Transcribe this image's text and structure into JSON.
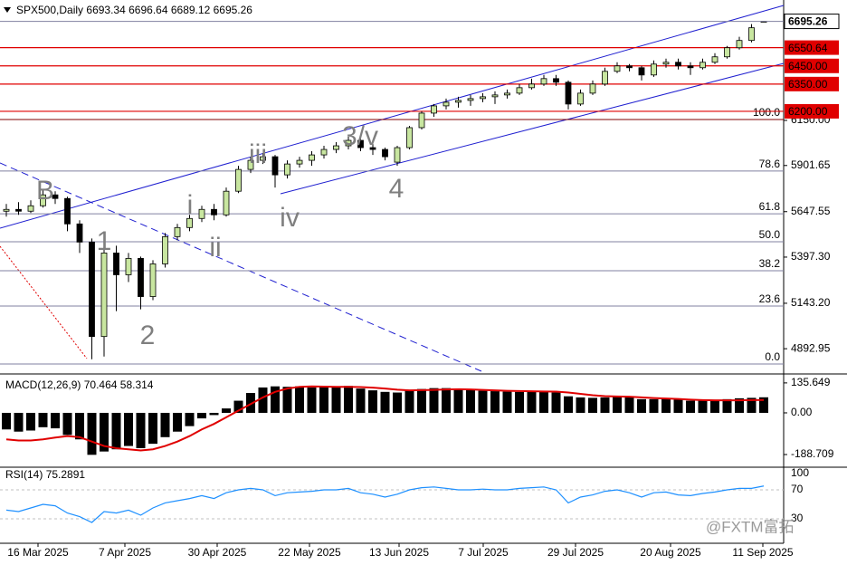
{
  "chart_data": [
    {
      "type": "candlestick",
      "title": "SPX500,Daily",
      "candles": [
        [
          5650,
          5690,
          5620,
          5660
        ],
        [
          5660,
          5700,
          5630,
          5650
        ],
        [
          5650,
          5710,
          5640,
          5680
        ],
        [
          5680,
          5770,
          5670,
          5740
        ],
        [
          5740,
          5760,
          5690,
          5720
        ],
        [
          5720,
          5730,
          5540,
          5580
        ],
        [
          5580,
          5600,
          5420,
          5480
        ],
        [
          5480,
          5500,
          4835,
          4960
        ],
        [
          4960,
          5480,
          4850,
          5420
        ],
        [
          5420,
          5460,
          5100,
          5300
        ],
        [
          5300,
          5420,
          5260,
          5390
        ],
        [
          5390,
          5400,
          5110,
          5180
        ],
        [
          5180,
          5380,
          5160,
          5360
        ],
        [
          5360,
          5530,
          5340,
          5510
        ],
        [
          5510,
          5580,
          5490,
          5560
        ],
        [
          5560,
          5630,
          5540,
          5610
        ],
        [
          5610,
          5680,
          5590,
          5660
        ],
        [
          5660,
          5690,
          5600,
          5630
        ],
        [
          5630,
          5780,
          5620,
          5760
        ],
        [
          5760,
          5900,
          5750,
          5880
        ],
        [
          5880,
          5950,
          5860,
          5930
        ],
        [
          5930,
          5970,
          5910,
          5950
        ],
        [
          5950,
          5960,
          5780,
          5850
        ],
        [
          5850,
          5930,
          5830,
          5910
        ],
        [
          5910,
          5950,
          5890,
          5930
        ],
        [
          5930,
          5980,
          5900,
          5960
        ],
        [
          5960,
          6010,
          5940,
          5990
        ],
        [
          5990,
          6030,
          5970,
          6010
        ],
        [
          6010,
          6060,
          5990,
          6040
        ],
        [
          6040,
          6050,
          5980,
          6000
        ],
        [
          6000,
          6020,
          5960,
          5990
        ],
        [
          5990,
          6000,
          5930,
          5950
        ],
        [
          5920,
          6010,
          5900,
          6000
        ],
        [
          6000,
          6120,
          5990,
          6110
        ],
        [
          6110,
          6200,
          6100,
          6190
        ],
        [
          6190,
          6240,
          6170,
          6230
        ],
        [
          6230,
          6270,
          6210,
          6250
        ],
        [
          6250,
          6280,
          6220,
          6260
        ],
        [
          6260,
          6290,
          6230,
          6270
        ],
        [
          6270,
          6300,
          6250,
          6280
        ],
        [
          6280,
          6310,
          6240,
          6290
        ],
        [
          6290,
          6320,
          6270,
          6300
        ],
        [
          6300,
          6350,
          6290,
          6330
        ],
        [
          6330,
          6380,
          6320,
          6350
        ],
        [
          6350,
          6400,
          6340,
          6380
        ],
        [
          6380,
          6400,
          6340,
          6360
        ],
        [
          6360,
          6370,
          6210,
          6240
        ],
        [
          6240,
          6320,
          6230,
          6300
        ],
        [
          6300,
          6370,
          6290,
          6350
        ],
        [
          6350,
          6440,
          6340,
          6420
        ],
        [
          6420,
          6470,
          6410,
          6450
        ],
        [
          6450,
          6460,
          6420,
          6440
        ],
        [
          6440,
          6450,
          6370,
          6400
        ],
        [
          6400,
          6480,
          6390,
          6460
        ],
        [
          6460,
          6490,
          6440,
          6470
        ],
        [
          6470,
          6490,
          6430,
          6450
        ],
        [
          6450,
          6470,
          6400,
          6440
        ],
        [
          6440,
          6490,
          6430,
          6470
        ],
        [
          6470,
          6520,
          6460,
          6500
        ],
        [
          6500,
          6560,
          6490,
          6550
        ],
        [
          6550,
          6610,
          6540,
          6590
        ],
        [
          6590,
          6680,
          6580,
          6660
        ],
        [
          6693.34,
          6696.64,
          6689.12,
          6695.26
        ]
      ],
      "up_color": "#c8e6a0",
      "down_color": "#000000",
      "ylim": [
        4759,
        6743
      ],
      "yticks": [
        {
          "value": 6150,
          "label": "6150.00"
        },
        5901.65,
        5647.55,
        {
          "value": 5397.3,
          "label": "5397.30"
        },
        {
          "value": 5143.2,
          "label": "5143.20"
        },
        4892.95
      ],
      "levels": [
        6550.64,
        {
          "value": 6450,
          "label": "6450.00"
        },
        {
          "value": 6350,
          "label": "6350.00"
        },
        {
          "value": 6200,
          "label": "6200.00"
        }
      ],
      "level_color": "#e00000",
      "fib_levels": [
        {
          "value": 6155,
          "label": "100.0"
        },
        {
          "value": 5871,
          "label": "78.6"
        },
        {
          "value": 5636,
          "label": "61.8"
        },
        {
          "value": 5482,
          "label": "50.0"
        },
        {
          "value": 5322,
          "label": "38.2"
        },
        {
          "value": 5128,
          "label": "23.6"
        },
        {
          "value": 4809,
          "label": "0.0"
        }
      ],
      "wave_labels": [
        "B",
        "1",
        "2",
        "i",
        "ii",
        "iii",
        "iv",
        "3/v",
        "4"
      ],
      "x_axis_labels": [
        "16 Mar 2025",
        "7 Apr 2025",
        "30 Apr 2025",
        "22 May 2025",
        "13 Jun 2025",
        "7 Jul 2025",
        "29 Jul 2025",
        "20 Aug 2025",
        "11 Sep 2025"
      ]
    },
    {
      "type": "macd",
      "title": "MACD(12,26,9)",
      "macd": [
        -75,
        -85,
        -80,
        -65,
        -70,
        -100,
        -120,
        -190,
        -175,
        -165,
        -150,
        -160,
        -140,
        -110,
        -85,
        -60,
        -25,
        -10,
        20,
        55,
        90,
        115,
        120,
        118,
        120,
        115,
        118,
        120,
        122,
        110,
        102,
        95,
        92,
        100,
        108,
        112,
        112,
        110,
        105,
        100,
        98,
        96,
        95,
        95,
        96,
        92,
        75,
        70,
        68,
        70,
        72,
        70,
        62,
        62,
        65,
        60,
        55,
        55,
        58,
        62,
        66,
        68,
        70.464
      ],
      "signal": [
        -120,
        -125,
        -125,
        -120,
        -112,
        -105,
        -110,
        -130,
        -150,
        -160,
        -165,
        -170,
        -165,
        -150,
        -130,
        -105,
        -75,
        -50,
        -20,
        10,
        40,
        70,
        95,
        110,
        118,
        120,
        119,
        118,
        118,
        117,
        114,
        110,
        105,
        102,
        103,
        104,
        106,
        107,
        106,
        104,
        102,
        100,
        99,
        98,
        97,
        96,
        92,
        86,
        80,
        76,
        74,
        73,
        70,
        67,
        65,
        63,
        60,
        58,
        57,
        57,
        57,
        58,
        58.314
      ],
      "macd_color": "#000000",
      "signal_color": "#e00000",
      "ylim": [
        -242,
        168
      ],
      "yticks": [
        135.649,
        {
          "value": 0,
          "label": "0.00"
        },
        -188.709
      ]
    },
    {
      "type": "line",
      "title": "RSI(14)",
      "values": [
        42,
        40,
        45,
        50,
        48,
        38,
        33,
        25,
        40,
        38,
        42,
        35,
        45,
        52,
        55,
        58,
        62,
        58,
        66,
        70,
        72,
        70,
        62,
        66,
        67,
        68,
        70,
        70,
        72,
        66,
        64,
        60,
        64,
        70,
        73,
        74,
        72,
        70,
        70,
        71,
        70,
        70,
        72,
        73,
        74,
        70,
        52,
        60,
        63,
        68,
        70,
        66,
        60,
        66,
        67,
        63,
        62,
        65,
        67,
        70,
        72,
        72,
        75.2891
      ],
      "color": "#1e90ff",
      "ylim": [
        0,
        100
      ],
      "yticks": [
        100,
        70,
        30
      ]
    }
  ],
  "watermark": "@FXTM富拓"
}
